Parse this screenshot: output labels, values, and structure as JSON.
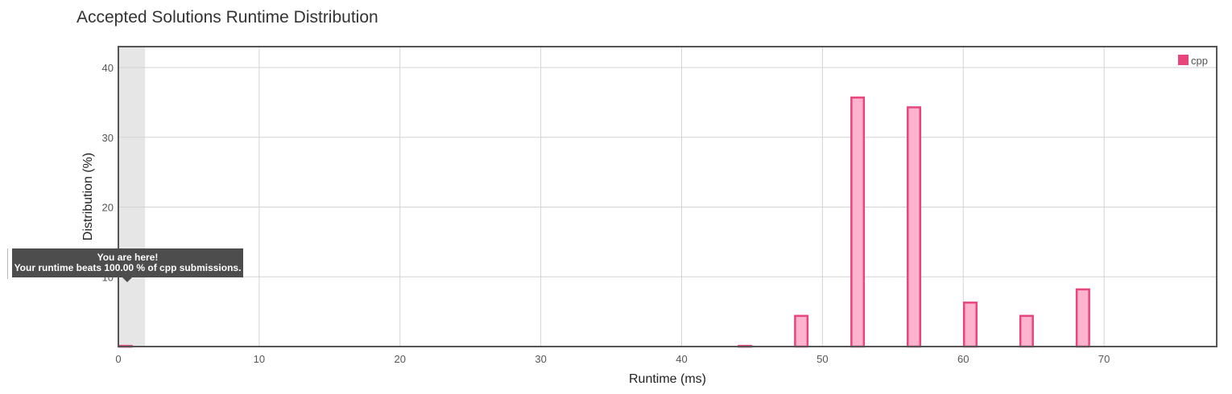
{
  "chart_data": {
    "type": "bar",
    "title": "Accepted Solutions Runtime Distribution",
    "xlabel": "Runtime (ms)",
    "ylabel": "Distribution (%)",
    "xlim": [
      0,
      78
    ],
    "ylim": [
      0,
      43
    ],
    "x_ticks": [
      0,
      10,
      20,
      30,
      40,
      50,
      60,
      70
    ],
    "y_ticks": [
      10,
      20,
      30,
      40
    ],
    "grid": true,
    "legend": {
      "position": "top-right",
      "entries": [
        "cpp"
      ]
    },
    "highlight_band": [
      0,
      1.9
    ],
    "series": [
      {
        "name": "cpp",
        "color": "#e8457b",
        "fill": "#ffb3cc",
        "bar_width": 1.0,
        "points": [
          {
            "x": 0.5,
            "y": 0.1
          },
          {
            "x": 44.5,
            "y": 0.1
          },
          {
            "x": 48.5,
            "y": 4.4
          },
          {
            "x": 52.5,
            "y": 35.7
          },
          {
            "x": 56.5,
            "y": 34.3
          },
          {
            "x": 60.5,
            "y": 6.3
          },
          {
            "x": 64.5,
            "y": 4.4
          },
          {
            "x": 68.5,
            "y": 8.2
          }
        ]
      }
    ]
  },
  "tooltip": {
    "line1": "You are here!",
    "line2": "Your runtime beats 100.00 % of cpp submissions."
  }
}
